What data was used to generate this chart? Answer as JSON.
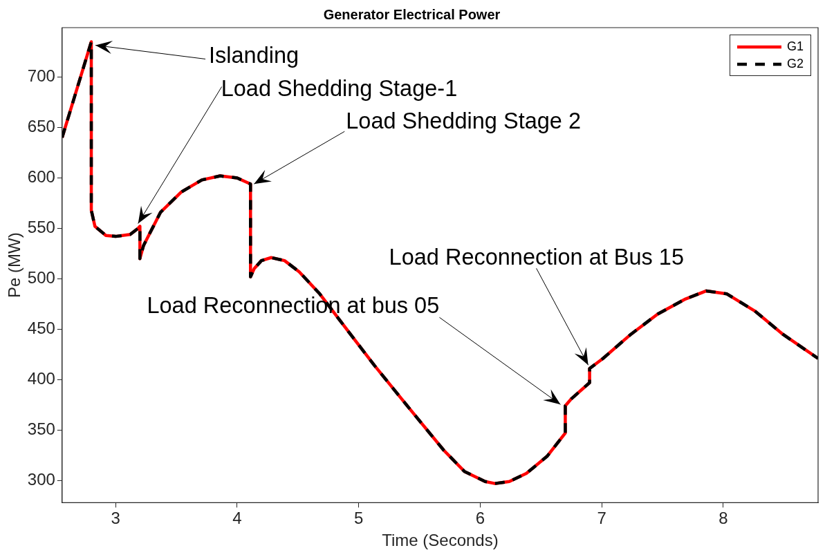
{
  "chart_data": {
    "type": "line",
    "title": "Generator Electrical Power",
    "xlabel": "Time (Seconds)",
    "ylabel": "Pe (MW)",
    "xlim": [
      2.56,
      8.78
    ],
    "ylim": [
      278,
      749
    ],
    "xticks": [
      3,
      4,
      5,
      6,
      7,
      8
    ],
    "yticks": [
      300,
      350,
      400,
      450,
      500,
      550,
      600,
      650,
      700
    ],
    "grid": false,
    "legend": "top right",
    "marker": "none",
    "x": [
      2.56,
      2.8,
      2.8,
      2.83,
      2.92,
      3.0,
      3.12,
      3.185,
      3.2,
      3.2,
      3.23,
      3.37,
      3.54,
      3.71,
      3.86,
      4.0,
      4.11,
      4.11,
      4.14,
      4.2,
      4.28,
      4.39,
      4.51,
      4.68,
      4.85,
      5.13,
      5.42,
      5.7,
      5.87,
      6.04,
      6.12,
      6.24,
      6.38,
      6.55,
      6.7,
      6.7,
      6.75,
      6.9,
      6.9,
      7.01,
      7.24,
      7.46,
      7.69,
      7.86,
      8.03,
      8.26,
      8.49,
      8.78
    ],
    "series": [
      {
        "name": "G1",
        "color": "#ff0000",
        "line_style": "solid",
        "values": [
          640,
          735,
          568,
          552,
          543,
          542,
          544,
          550,
          552,
          520,
          533,
          566,
          586,
          598,
          602,
          600,
          594,
          502,
          510,
          518,
          521,
          518,
          507,
          485,
          458,
          414,
          371,
          330,
          309,
          299,
          297,
          299,
          307,
          324,
          347,
          374,
          381,
          397,
          411,
          421,
          445,
          465,
          480,
          488,
          485,
          468,
          445,
          421
        ]
      },
      {
        "name": "G2",
        "color": "#000000",
        "line_style": "dashed",
        "values": [
          640,
          735,
          568,
          552,
          543,
          542,
          544,
          550,
          552,
          520,
          533,
          566,
          586,
          598,
          602,
          600,
          594,
          502,
          510,
          518,
          521,
          518,
          507,
          485,
          458,
          414,
          371,
          330,
          309,
          299,
          297,
          299,
          307,
          324,
          347,
          374,
          381,
          397,
          411,
          421,
          445,
          465,
          480,
          488,
          485,
          468,
          445,
          421
        ]
      }
    ],
    "annotations": [
      {
        "text": "Islanding",
        "x": 2.8,
        "y": 735
      },
      {
        "text": "Load Shedding Stage-1",
        "x": 3.185,
        "y": 550
      },
      {
        "text": "Load Shedding Stage 2",
        "x": 4.11,
        "y": 594
      },
      {
        "text": "Load Reconnection at bus 05",
        "x": 6.7,
        "y": 374
      },
      {
        "text": "Load Reconnection at Bus 15",
        "x": 6.9,
        "y": 411
      }
    ]
  }
}
